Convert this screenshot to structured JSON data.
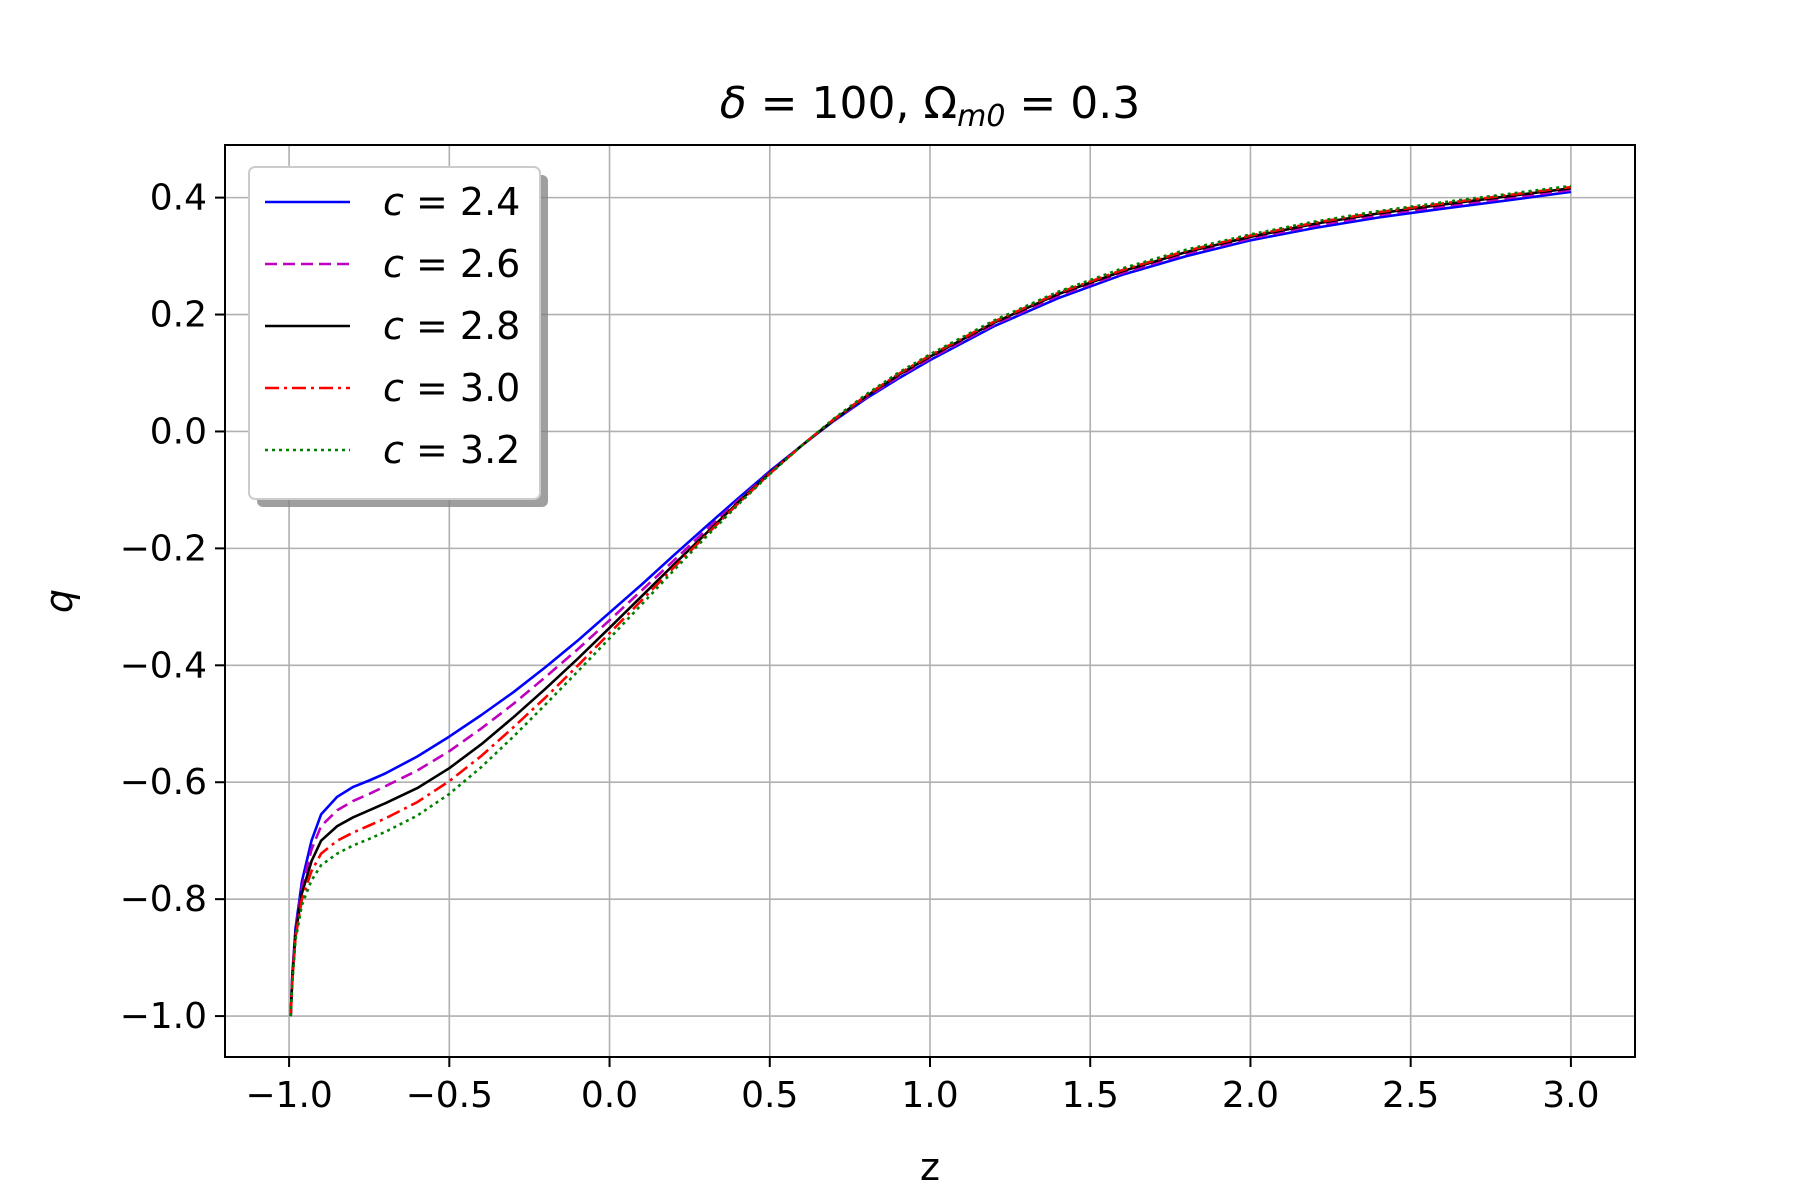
{
  "chart_data": {
    "type": "line",
    "title": "δ = 100, Ω_m0 = 0.3",
    "title_parts": {
      "delta": "δ",
      "eq1": " = 100, ",
      "omega": "Ω",
      "sub": "m0",
      "eq2": " = 0.3"
    },
    "xlabel": "z",
    "ylabel": "q",
    "xlim": [
      -1.2,
      3.2
    ],
    "ylim": [
      -1.07,
      0.49
    ],
    "xticks": [
      -1.0,
      -0.5,
      0.0,
      0.5,
      1.0,
      1.5,
      2.0,
      2.5,
      3.0
    ],
    "xtick_labels": [
      "−1.0",
      "−0.5",
      "0.0",
      "0.5",
      "1.0",
      "1.5",
      "2.0",
      "2.5",
      "3.0"
    ],
    "yticks": [
      -1.0,
      -0.8,
      -0.6,
      -0.4,
      -0.2,
      0.0,
      0.2,
      0.4
    ],
    "ytick_labels": [
      "−1.0",
      "−0.8",
      "−0.6",
      "−0.4",
      "−0.2",
      "0.0",
      "0.2",
      "0.4"
    ],
    "grid": true,
    "legend_position": "top-left",
    "series": [
      {
        "name": "c = 2.4",
        "color": "#0000ff",
        "dash": "solid",
        "points": [
          [
            -0.995,
            -1.0
          ],
          [
            -0.99,
            -0.93
          ],
          [
            -0.98,
            -0.85
          ],
          [
            -0.96,
            -0.77
          ],
          [
            -0.93,
            -0.7
          ],
          [
            -0.9,
            -0.655
          ],
          [
            -0.85,
            -0.625
          ],
          [
            -0.8,
            -0.608
          ],
          [
            -0.75,
            -0.597
          ],
          [
            -0.7,
            -0.585
          ],
          [
            -0.6,
            -0.556
          ],
          [
            -0.5,
            -0.522
          ],
          [
            -0.4,
            -0.485
          ],
          [
            -0.3,
            -0.446
          ],
          [
            -0.2,
            -0.403
          ],
          [
            -0.1,
            -0.358
          ],
          [
            0.0,
            -0.31
          ],
          [
            0.1,
            -0.262
          ],
          [
            0.2,
            -0.212
          ],
          [
            0.3,
            -0.163
          ],
          [
            0.4,
            -0.115
          ],
          [
            0.5,
            -0.068
          ],
          [
            0.6,
            -0.024
          ],
          [
            0.7,
            0.018
          ],
          [
            0.8,
            0.056
          ],
          [
            0.9,
            0.09
          ],
          [
            1.0,
            0.122
          ],
          [
            1.2,
            0.18
          ],
          [
            1.4,
            0.228
          ],
          [
            1.6,
            0.268
          ],
          [
            1.8,
            0.3
          ],
          [
            2.0,
            0.327
          ],
          [
            2.2,
            0.348
          ],
          [
            2.4,
            0.366
          ],
          [
            2.6,
            0.381
          ],
          [
            2.8,
            0.395
          ],
          [
            3.0,
            0.41
          ]
        ]
      },
      {
        "name": "c = 2.6",
        "color": "#bf00bf",
        "dash": "dashed",
        "points": [
          [
            -0.995,
            -1.0
          ],
          [
            -0.99,
            -0.93
          ],
          [
            -0.98,
            -0.855
          ],
          [
            -0.96,
            -0.78
          ],
          [
            -0.93,
            -0.715
          ],
          [
            -0.9,
            -0.675
          ],
          [
            -0.85,
            -0.648
          ],
          [
            -0.8,
            -0.632
          ],
          [
            -0.75,
            -0.62
          ],
          [
            -0.7,
            -0.607
          ],
          [
            -0.6,
            -0.58
          ],
          [
            -0.5,
            -0.547
          ],
          [
            -0.4,
            -0.508
          ],
          [
            -0.3,
            -0.466
          ],
          [
            -0.2,
            -0.42
          ],
          [
            -0.1,
            -0.373
          ],
          [
            0.0,
            -0.323
          ],
          [
            0.1,
            -0.272
          ],
          [
            0.2,
            -0.221
          ],
          [
            0.3,
            -0.169
          ],
          [
            0.4,
            -0.119
          ],
          [
            0.5,
            -0.07
          ],
          [
            0.6,
            -0.024
          ],
          [
            0.7,
            0.019
          ],
          [
            0.8,
            0.058
          ],
          [
            0.9,
            0.093
          ],
          [
            1.0,
            0.125
          ],
          [
            1.2,
            0.183
          ],
          [
            1.4,
            0.232
          ],
          [
            1.6,
            0.271
          ],
          [
            1.8,
            0.304
          ],
          [
            2.0,
            0.33
          ],
          [
            2.2,
            0.352
          ],
          [
            2.4,
            0.37
          ],
          [
            2.6,
            0.385
          ],
          [
            2.8,
            0.399
          ],
          [
            3.0,
            0.413
          ]
        ]
      },
      {
        "name": "c = 2.8",
        "color": "#000000",
        "dash": "solid",
        "points": [
          [
            -0.995,
            -1.0
          ],
          [
            -0.99,
            -0.935
          ],
          [
            -0.98,
            -0.86
          ],
          [
            -0.96,
            -0.79
          ],
          [
            -0.93,
            -0.735
          ],
          [
            -0.9,
            -0.7
          ],
          [
            -0.85,
            -0.675
          ],
          [
            -0.8,
            -0.66
          ],
          [
            -0.75,
            -0.648
          ],
          [
            -0.7,
            -0.636
          ],
          [
            -0.6,
            -0.61
          ],
          [
            -0.5,
            -0.576
          ],
          [
            -0.4,
            -0.535
          ],
          [
            -0.3,
            -0.489
          ],
          [
            -0.2,
            -0.44
          ],
          [
            -0.1,
            -0.389
          ],
          [
            0.0,
            -0.336
          ],
          [
            0.1,
            -0.282
          ],
          [
            0.2,
            -0.228
          ],
          [
            0.3,
            -0.175
          ],
          [
            0.4,
            -0.122
          ],
          [
            0.5,
            -0.071
          ],
          [
            0.6,
            -0.024
          ],
          [
            0.7,
            0.02
          ],
          [
            0.8,
            0.06
          ],
          [
            0.9,
            0.096
          ],
          [
            1.0,
            0.128
          ],
          [
            1.2,
            0.186
          ],
          [
            1.4,
            0.235
          ],
          [
            1.6,
            0.274
          ],
          [
            1.8,
            0.307
          ],
          [
            2.0,
            0.333
          ],
          [
            2.2,
            0.355
          ],
          [
            2.4,
            0.373
          ],
          [
            2.6,
            0.388
          ],
          [
            2.8,
            0.402
          ],
          [
            3.0,
            0.416
          ]
        ]
      },
      {
        "name": "c = 3.0",
        "color": "#ff0000",
        "dash": "dashdot",
        "points": [
          [
            -0.995,
            -1.0
          ],
          [
            -0.99,
            -0.94
          ],
          [
            -0.98,
            -0.865
          ],
          [
            -0.96,
            -0.8
          ],
          [
            -0.93,
            -0.752
          ],
          [
            -0.9,
            -0.722
          ],
          [
            -0.85,
            -0.7
          ],
          [
            -0.8,
            -0.686
          ],
          [
            -0.75,
            -0.674
          ],
          [
            -0.7,
            -0.662
          ],
          [
            -0.6,
            -0.634
          ],
          [
            -0.5,
            -0.598
          ],
          [
            -0.4,
            -0.555
          ],
          [
            -0.3,
            -0.506
          ],
          [
            -0.2,
            -0.455
          ],
          [
            -0.1,
            -0.401
          ],
          [
            0.0,
            -0.345
          ],
          [
            0.1,
            -0.289
          ],
          [
            0.2,
            -0.233
          ],
          [
            0.3,
            -0.178
          ],
          [
            0.4,
            -0.124
          ],
          [
            0.5,
            -0.072
          ],
          [
            0.6,
            -0.024
          ],
          [
            0.7,
            0.021
          ],
          [
            0.8,
            0.061
          ],
          [
            0.9,
            0.098
          ],
          [
            1.0,
            0.13
          ],
          [
            1.2,
            0.188
          ],
          [
            1.4,
            0.237
          ],
          [
            1.6,
            0.276
          ],
          [
            1.8,
            0.309
          ],
          [
            2.0,
            0.335
          ],
          [
            2.2,
            0.357
          ],
          [
            2.4,
            0.375
          ],
          [
            2.6,
            0.39
          ],
          [
            2.8,
            0.404
          ],
          [
            3.0,
            0.418
          ]
        ]
      },
      {
        "name": "c = 3.2",
        "color": "#008000",
        "dash": "dotted",
        "points": [
          [
            -0.995,
            -1.0
          ],
          [
            -0.99,
            -0.945
          ],
          [
            -0.98,
            -0.87
          ],
          [
            -0.96,
            -0.81
          ],
          [
            -0.93,
            -0.768
          ],
          [
            -0.9,
            -0.742
          ],
          [
            -0.85,
            -0.722
          ],
          [
            -0.8,
            -0.708
          ],
          [
            -0.75,
            -0.697
          ],
          [
            -0.7,
            -0.685
          ],
          [
            -0.6,
            -0.657
          ],
          [
            -0.5,
            -0.62
          ],
          [
            -0.4,
            -0.574
          ],
          [
            -0.3,
            -0.522
          ],
          [
            -0.2,
            -0.467
          ],
          [
            -0.1,
            -0.411
          ],
          [
            0.0,
            -0.354
          ],
          [
            0.1,
            -0.296
          ],
          [
            0.2,
            -0.238
          ],
          [
            0.3,
            -0.181
          ],
          [
            0.4,
            -0.126
          ],
          [
            0.5,
            -0.073
          ],
          [
            0.6,
            -0.024
          ],
          [
            0.7,
            0.022
          ],
          [
            0.8,
            0.063
          ],
          [
            0.9,
            0.1
          ],
          [
            1.0,
            0.132
          ],
          [
            1.2,
            0.19
          ],
          [
            1.4,
            0.239
          ],
          [
            1.6,
            0.279
          ],
          [
            1.8,
            0.311
          ],
          [
            2.0,
            0.337
          ],
          [
            2.2,
            0.359
          ],
          [
            2.4,
            0.377
          ],
          [
            2.6,
            0.392
          ],
          [
            2.8,
            0.406
          ],
          [
            3.0,
            0.42
          ]
        ]
      }
    ]
  }
}
